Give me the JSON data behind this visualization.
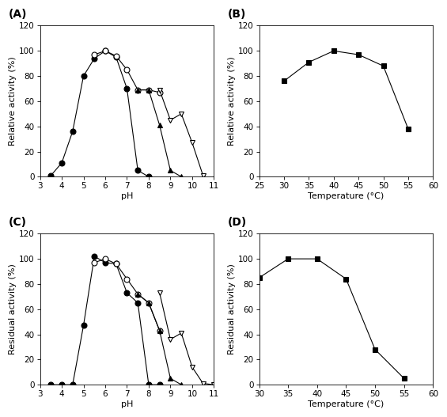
{
  "A": {
    "label": "(A)",
    "series": [
      {
        "x": [
          3.5,
          4.0,
          4.5,
          5.0,
          5.5,
          6.0,
          6.5,
          7.0,
          7.5,
          8.0
        ],
        "y": [
          1,
          11,
          36,
          80,
          94,
          100,
          95,
          70,
          5,
          0
        ],
        "marker": "o",
        "filled": true
      },
      {
        "x": [
          5.5,
          6.0,
          6.5,
          7.0,
          7.5,
          8.0,
          8.5
        ],
        "y": [
          97,
          100,
          96,
          85,
          69,
          69,
          67
        ],
        "marker": "o",
        "filled": false
      },
      {
        "x": [
          7.5,
          8.0,
          8.5,
          9.0,
          9.5
        ],
        "y": [
          69,
          69,
          41,
          5,
          0
        ],
        "marker": "^",
        "filled": true
      },
      {
        "x": [
          8.5,
          9.0,
          9.5,
          10.0,
          10.5
        ],
        "y": [
          69,
          45,
          50,
          27,
          1
        ],
        "marker": "v",
        "filled": false
      }
    ],
    "xlabel": "pH",
    "ylabel": "Relative activity (%)",
    "xlim": [
      3,
      11
    ],
    "ylim": [
      0,
      120
    ],
    "xticks": [
      3,
      4,
      5,
      6,
      7,
      8,
      9,
      10,
      11
    ],
    "yticks": [
      0,
      20,
      40,
      60,
      80,
      100,
      120
    ]
  },
  "B": {
    "label": "(B)",
    "series": [
      {
        "x": [
          30,
          35,
          40,
          45,
          50,
          55
        ],
        "y": [
          76,
          91,
          100,
          97,
          88,
          38
        ],
        "marker": "s",
        "filled": true
      }
    ],
    "xlabel": "Temperature (°C)",
    "ylabel": "Relative activity (%)",
    "xlim": [
      25,
      60
    ],
    "ylim": [
      0,
      120
    ],
    "xticks": [
      25,
      30,
      35,
      40,
      45,
      50,
      55,
      60
    ],
    "yticks": [
      0,
      20,
      40,
      60,
      80,
      100,
      120
    ]
  },
  "C": {
    "label": "(C)",
    "series": [
      {
        "x": [
          3.5,
          4.0,
          4.5,
          5.0,
          5.5,
          6.0,
          6.5,
          7.0,
          7.5,
          8.0,
          8.5
        ],
        "y": [
          0,
          0,
          0,
          47,
          102,
          97,
          96,
          73,
          65,
          0,
          0
        ],
        "marker": "o",
        "filled": true
      },
      {
        "x": [
          5.5,
          6.0,
          6.5,
          7.0,
          7.5,
          8.0,
          8.5
        ],
        "y": [
          97,
          100,
          96,
          84,
          72,
          65,
          43
        ],
        "marker": "o",
        "filled": false
      },
      {
        "x": [
          7.5,
          8.0,
          8.5,
          9.0,
          9.5
        ],
        "y": [
          72,
          65,
          43,
          5,
          0
        ],
        "marker": "^",
        "filled": true
      },
      {
        "x": [
          8.5,
          9.0,
          9.5,
          10.0,
          10.5,
          11.0
        ],
        "y": [
          73,
          36,
          41,
          14,
          1,
          0
        ],
        "marker": "v",
        "filled": false
      }
    ],
    "xlabel": "pH",
    "ylabel": "Residual activity (%)",
    "xlim": [
      3,
      11
    ],
    "ylim": [
      0,
      120
    ],
    "xticks": [
      3,
      4,
      5,
      6,
      7,
      8,
      9,
      10,
      11
    ],
    "yticks": [
      0,
      20,
      40,
      60,
      80,
      100,
      120
    ]
  },
  "D": {
    "label": "(D)",
    "series": [
      {
        "x": [
          30,
          35,
          40,
          45,
          50,
          55
        ],
        "y": [
          85,
          100,
          100,
          84,
          28,
          5
        ],
        "marker": "s",
        "filled": true
      }
    ],
    "xlabel": "Temperature (°C)",
    "ylabel": "Residual activity (%)",
    "xlim": [
      30,
      60
    ],
    "ylim": [
      0,
      120
    ],
    "xticks": [
      30,
      35,
      40,
      45,
      50,
      55,
      60
    ],
    "yticks": [
      0,
      20,
      40,
      60,
      80,
      100,
      120
    ]
  },
  "figsize": [
    5.65,
    5.27
  ],
  "dpi": 100,
  "marker_size": 5,
  "line_width": 0.8,
  "font_size_label": 8,
  "font_size_tick": 7.5,
  "font_size_panel": 10
}
